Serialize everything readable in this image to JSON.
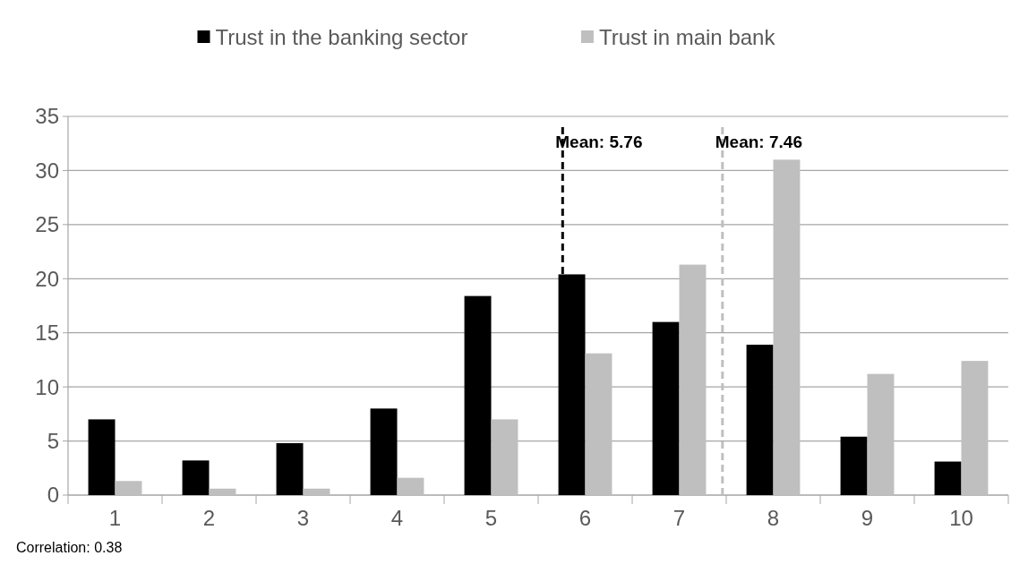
{
  "chart_data": {
    "type": "bar",
    "x": [
      1,
      2,
      3,
      4,
      5,
      6,
      7,
      8,
      9,
      10
    ],
    "series": [
      {
        "name": "Trust in the banking sector",
        "color": "#000000",
        "values": [
          7.0,
          3.2,
          4.8,
          8.0,
          18.4,
          20.4,
          16.0,
          13.9,
          5.4,
          3.1
        ]
      },
      {
        "name": "Trust in main bank",
        "color": "#bfbfbf",
        "values": [
          1.3,
          0.6,
          0.6,
          1.6,
          7.0,
          13.1,
          21.3,
          31.0,
          11.2,
          12.4
        ]
      }
    ],
    "xlim": [
      0.5,
      10.5
    ],
    "xticks": [
      1,
      2,
      3,
      4,
      5,
      6,
      7,
      8,
      9,
      10
    ],
    "ylim": [
      0,
      35
    ],
    "yticks": [
      0,
      5,
      10,
      15,
      20,
      25,
      30,
      35
    ],
    "grid": "y",
    "legend": "top",
    "ref_lines": [
      {
        "axis": "x",
        "value": 5.76,
        "label": "Mean: 5.76",
        "color": "#000000",
        "line_style": "dashed"
      },
      {
        "axis": "x",
        "value": 7.46,
        "label": "Mean: 7.46",
        "color": "#bfbfbf",
        "line_style": "dashed"
      }
    ],
    "annotations": [
      "Correlation: 0.38"
    ]
  }
}
